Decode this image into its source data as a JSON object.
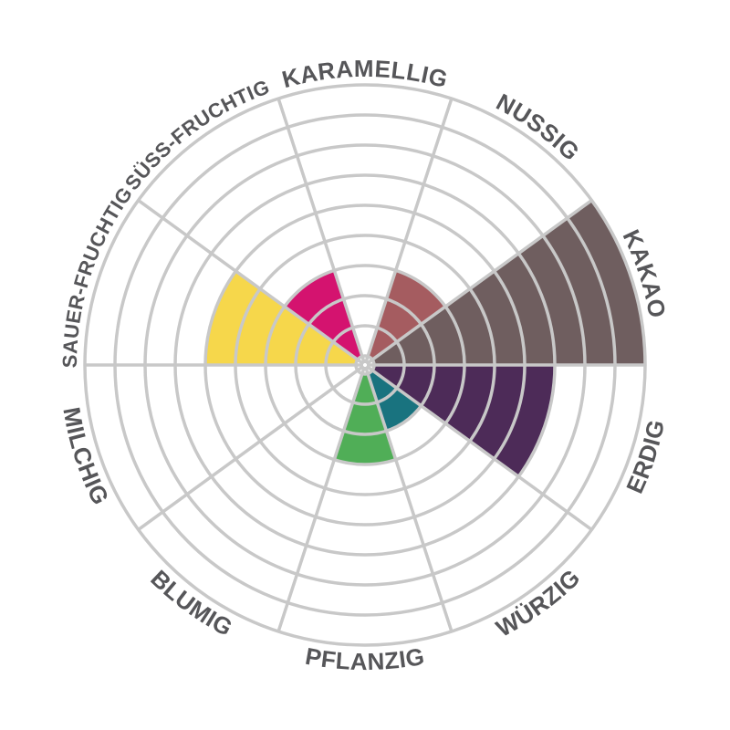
{
  "chart_data": {
    "type": "polar_area",
    "description": "Aroma / flavour profile wheel (German labels), rose chart with 10 sectors of 36 degrees each",
    "scale": {
      "min": 0,
      "max": 9,
      "rings": 9
    },
    "grid": true,
    "legend_position": "none",
    "categories": [
      {
        "label": "KARAMELLIG",
        "value": 0,
        "angle_deg": 90,
        "color": null
      },
      {
        "label": "NUSSIG",
        "value": 3,
        "angle_deg": 54,
        "color": "#a55c60"
      },
      {
        "label": "KAKAO",
        "value": 9,
        "angle_deg": 18,
        "color": "#6f5e5f"
      },
      {
        "label": "ERDIG",
        "value": 6,
        "angle_deg": 342,
        "color": "#4d2b58"
      },
      {
        "label": "WÜRZIG",
        "value": 2,
        "angle_deg": 306,
        "color": "#19737f"
      },
      {
        "label": "PFLANZIG",
        "value": 3,
        "angle_deg": 270,
        "color": "#50ae57"
      },
      {
        "label": "BLUMIG",
        "value": 0,
        "angle_deg": 234,
        "color": null
      },
      {
        "label": "MILCHIG",
        "value": 0,
        "angle_deg": 198,
        "color": null
      },
      {
        "label": "SAUER-FRUCHTIG",
        "value": 5,
        "angle_deg": 162,
        "color": "#f6d74b"
      },
      {
        "label": "SÜSS-FRUCHTIG",
        "value": 3,
        "angle_deg": 126,
        "color": "#d4136f"
      }
    ],
    "style": {
      "grid_color": "#c8c8c8",
      "label_color": "#565659",
      "background": "#ffffff"
    }
  }
}
